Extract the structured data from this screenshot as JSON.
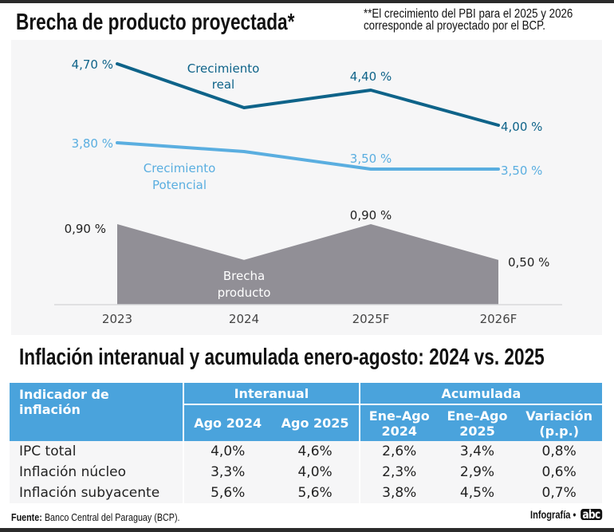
{
  "header": {
    "title": "Brecha de producto proyectada*",
    "note_line1": "**El crecimiento del PBI para el 2025 y 2026",
    "note_line2": "corresponde al proyectado por el BCP."
  },
  "colors": {
    "real": "#0e6389",
    "potential": "#5aaee0",
    "gap": "#918f96",
    "table_header": "#4aa3dc",
    "panel_bg": "#f6f6f7"
  },
  "chart_data": {
    "type": "line",
    "categories": [
      "2023",
      "2024",
      "2025F",
      "2026F"
    ],
    "series": [
      {
        "name": "Crecimiento real",
        "label_lines": [
          "Crecimiento",
          "real"
        ],
        "values": [
          4.7,
          4.2,
          4.4,
          4.0
        ],
        "labels": [
          "4,70 %",
          "",
          "4,40 %",
          "4,00 %"
        ]
      },
      {
        "name": "Crecimiento Potencial",
        "label_lines": [
          "Crecimiento",
          "Potencial"
        ],
        "values": [
          3.8,
          3.7,
          3.5,
          3.5
        ],
        "labels": [
          "3,80 %",
          "",
          "3,50 %",
          "3,50 %"
        ]
      }
    ],
    "area_series": {
      "name": "Brecha producto",
      "label_lines": [
        "Brecha",
        "producto"
      ],
      "type": "area",
      "values": [
        0.9,
        0.5,
        0.9,
        0.5
      ],
      "labels": [
        "0,90 %",
        "",
        "0,90 %",
        "0,50 %"
      ]
    },
    "xlabel": "",
    "ylabel": "",
    "grid": false,
    "legend": "inline"
  },
  "section2": {
    "title": "Inflación interanual y acumulada enero-agosto: 2024 vs. 2025"
  },
  "table": {
    "indicator_header": "Indicador de inflación",
    "group_interanual": "Interanual",
    "group_acumulada": "Acumulada",
    "subheaders": [
      "Ago 2024",
      "Ago 2025",
      "Ene–Ago 2024",
      "Ene–Ago 2025",
      "Variación (p.p.)"
    ],
    "rows": [
      {
        "label": "IPC total",
        "values": [
          "4,0%",
          "4,6%",
          "2,6%",
          "3,4%",
          "0,8%"
        ]
      },
      {
        "label": "Inflación núcleo",
        "values": [
          "3,3%",
          "4,0%",
          "2,3%",
          "2,9%",
          "0,6%"
        ]
      },
      {
        "label": "Inflación subyacente",
        "values": [
          "5,6%",
          "5,6%",
          "3,8%",
          "4,5%",
          "0,7%"
        ]
      }
    ]
  },
  "footer": {
    "source_label": "Fuente:",
    "source_text": "Banco Central del Paraguay (BCP).",
    "credit": "Infografía •",
    "logo": "abc"
  }
}
